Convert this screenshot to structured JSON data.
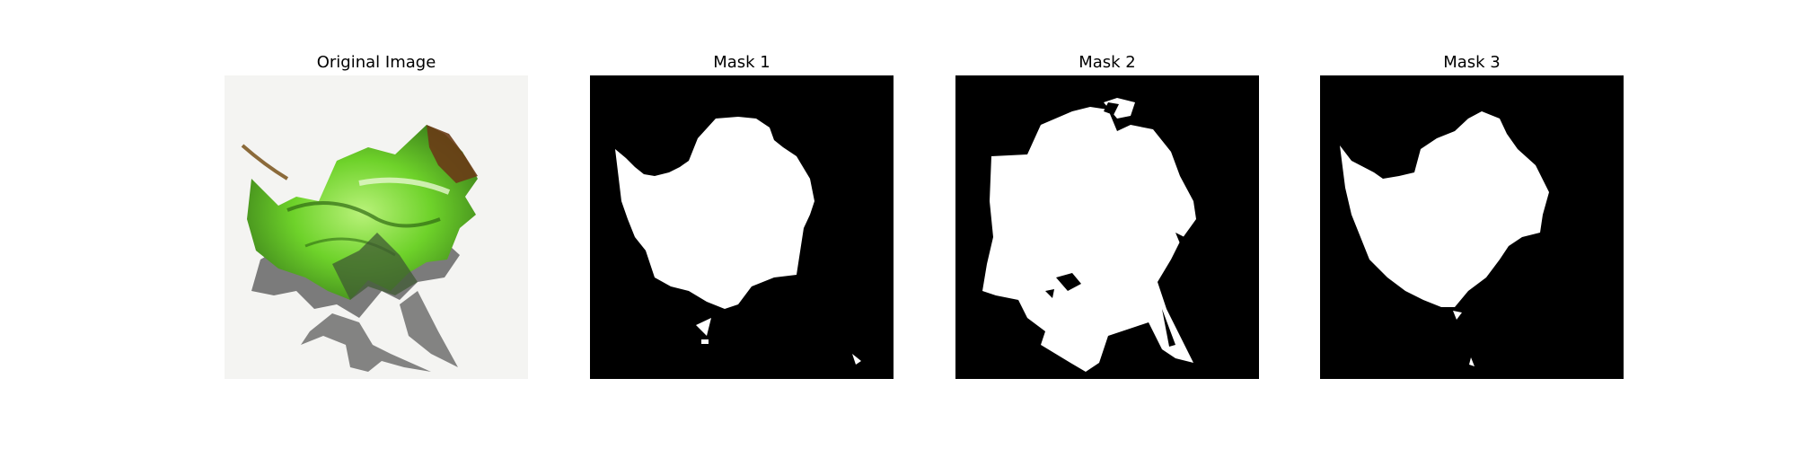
{
  "panels": [
    {
      "title": "Original Image",
      "kind": "photo"
    },
    {
      "title": "Mask 1",
      "kind": "mask"
    },
    {
      "title": "Mask 2",
      "kind": "mask"
    },
    {
      "title": "Mask 3",
      "kind": "mask"
    }
  ],
  "colors": {
    "page_background": "#ffffff",
    "mask_background": "#000000",
    "mask_foreground": "#ffffff",
    "photo_background": "#f4f4f2",
    "shadow": "#6e6e6e",
    "leaf_green": "#6ed22a",
    "leaf_dark": "#3a7d1a",
    "leaf_brown": "#6a3b16"
  }
}
